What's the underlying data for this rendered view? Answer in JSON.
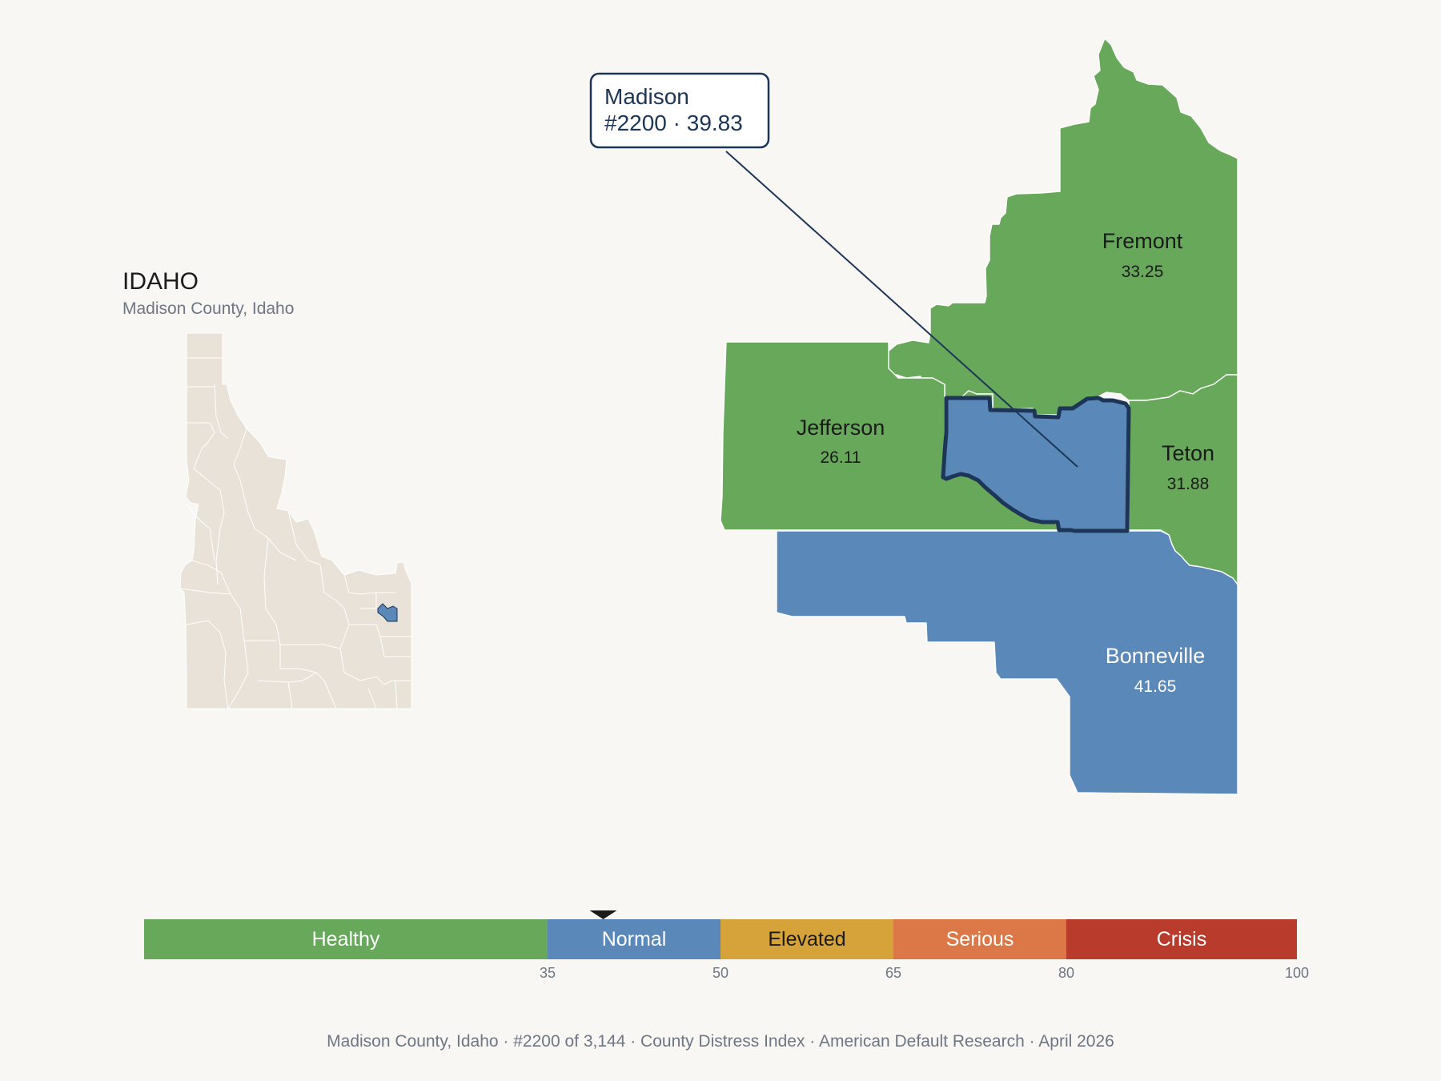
{
  "state": {
    "title": "IDAHO",
    "subtitle": "Madison County, Idaho"
  },
  "callout": {
    "name": "Madison",
    "detail": "#2200 · 39.83"
  },
  "counties": [
    {
      "id": "fremont",
      "name": "Fremont",
      "score": "33.25",
      "color": "#67a85a",
      "text_color": "#1b1b1b"
    },
    {
      "id": "jefferson",
      "name": "Jefferson",
      "score": "26.11",
      "color": "#67a85a",
      "text_color": "#1b1b1b"
    },
    {
      "id": "teton",
      "name": "Teton",
      "score": "31.88",
      "color": "#67a85a",
      "text_color": "#1b1b1b"
    },
    {
      "id": "bonneville",
      "name": "Bonneville",
      "score": "41.65",
      "color": "#5a89b9",
      "text_color": "#ffffff"
    },
    {
      "id": "madison",
      "name": "Madison",
      "score": "39.83",
      "color": "#5a89b9",
      "highlighted": true
    }
  ],
  "scale": {
    "min": 0,
    "max": 100,
    "marker_value": 39.83,
    "bands": [
      {
        "label": "Healthy",
        "from": 0,
        "to": 35,
        "color": "#67a85a",
        "text_color": "#ffffff"
      },
      {
        "label": "Normal",
        "from": 35,
        "to": 50,
        "color": "#5a89b9",
        "text_color": "#ffffff"
      },
      {
        "label": "Elevated",
        "from": 50,
        "to": 65,
        "color": "#d6a33a",
        "text_color": "#1b1b1b"
      },
      {
        "label": "Serious",
        "from": 65,
        "to": 80,
        "color": "#dc7747",
        "text_color": "#ffffff"
      },
      {
        "label": "Crisis",
        "from": 80,
        "to": 100,
        "color": "#b83b2c",
        "text_color": "#ffffff"
      }
    ],
    "ticks": [
      "35",
      "50",
      "65",
      "80",
      "100"
    ]
  },
  "footer": {
    "items": [
      "Madison County, Idaho",
      "#2200 of 3,144",
      "County Distress Index",
      "American Default Research",
      "April 2026"
    ],
    "separator": "·"
  },
  "colors": {
    "background": "#f9f7f4",
    "inset_fill": "#e8e2d8",
    "highlight_outline": "#1d3557",
    "callout_text": "#1d3557"
  }
}
